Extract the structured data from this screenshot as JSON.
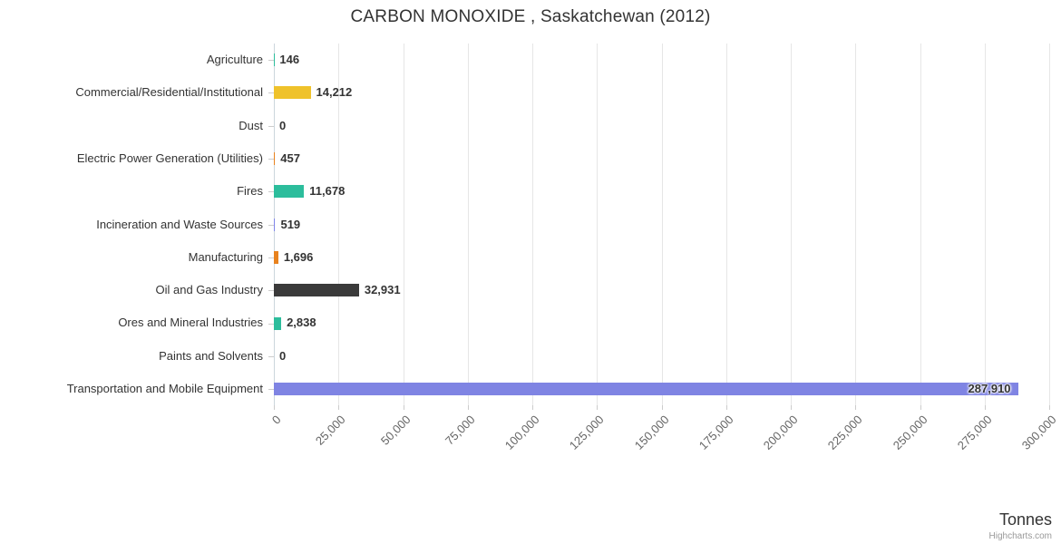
{
  "title": "CARBON MONOXIDE , Saskatchewan (2012)",
  "credits": "Highcharts.com",
  "chart_data": {
    "type": "bar",
    "title": "CARBON MONOXIDE , Saskatchewan (2012)",
    "xlabel": "Tonnes",
    "ylabel": "",
    "xlim": [
      0,
      300000
    ],
    "tick_interval": 25000,
    "grid": true,
    "legend": false,
    "categories": [
      "Agriculture",
      "Commercial/Residential/Institutional",
      "Dust",
      "Electric Power Generation (Utilities)",
      "Fires",
      "Incineration and Waste Sources",
      "Manufacturing",
      "Oil and Gas Industry",
      "Ores and Mineral Industries",
      "Paints and Solvents",
      "Transportation and Mobile Equipment"
    ],
    "values": [
      146,
      14212,
      0,
      457,
      11678,
      519,
      1696,
      32931,
      2838,
      0,
      287910
    ],
    "value_labels": [
      "146",
      "14,212",
      "0",
      "457",
      "11,678",
      "519",
      "1,696",
      "32,931",
      "2,838",
      "0",
      "287,910"
    ],
    "colors": [
      "#2cbd9c",
      "#efc22b",
      "#999999",
      "#e8821e",
      "#2cbd9c",
      "#8085e9",
      "#e8821e",
      "#3a3a3a",
      "#2cbd9c",
      "#999999",
      "#7f84e3"
    ],
    "tick_labels": [
      "0",
      "25,000",
      "50,000",
      "75,000",
      "100,000",
      "125,000",
      "150,000",
      "175,000",
      "200,000",
      "225,000",
      "250,000",
      "275,000",
      "300,000"
    ],
    "tick_values": [
      0,
      25000,
      50000,
      75000,
      100000,
      125000,
      150000,
      175000,
      200000,
      225000,
      250000,
      275000,
      300000
    ]
  }
}
